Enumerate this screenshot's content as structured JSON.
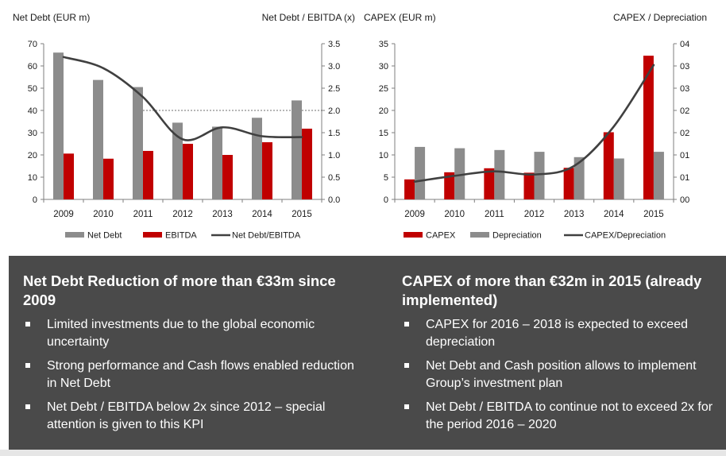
{
  "colors": {
    "bar_gray": "#8c8c8c",
    "bar_red": "#c00000",
    "line": "#404040",
    "panel_bg": "#4a4a4a",
    "panel_text": "#ffffff"
  },
  "chart_data": [
    {
      "type": "bar",
      "title_left": "Net Debt (EUR m)",
      "title_right": "Net Debt / EBITDA (x)",
      "categories": [
        "2009",
        "2010",
        "2011",
        "2012",
        "2013",
        "2014",
        "2015"
      ],
      "series": [
        {
          "name": "Net Debt",
          "kind": "bar",
          "axis": "left",
          "color": "#8c8c8c",
          "values": [
            66,
            53.7,
            50.5,
            34.5,
            32.7,
            36.7,
            44.5
          ]
        },
        {
          "name": "EBITDA",
          "kind": "bar",
          "axis": "left",
          "color": "#c00000",
          "values": [
            20.6,
            18.3,
            21.8,
            25,
            20,
            25.7,
            31.8
          ]
        },
        {
          "name": "Net Debt/EBITDA",
          "kind": "line",
          "axis": "right",
          "color": "#404040",
          "values": [
            3.2,
            2.95,
            2.3,
            1.35,
            1.62,
            1.42,
            1.4
          ]
        }
      ],
      "y_left": {
        "min": 0,
        "max": 70,
        "step": 10,
        "ticks": [
          "0",
          "10",
          "20",
          "30",
          "40",
          "50",
          "60",
          "70"
        ]
      },
      "y_right": {
        "min": 0,
        "max": 3.5,
        "step": 0.5,
        "ticks": [
          "0.0",
          "0.5",
          "1.0",
          "1.5",
          "2.0",
          "2.5",
          "3.0",
          "3.5"
        ]
      },
      "reference_line": {
        "axis": "right",
        "value": 2.0,
        "style": "dashed"
      },
      "legend": [
        "Net Debt",
        "EBITDA",
        "Net Debt/EBITDA"
      ],
      "legend_position": "bottom"
    },
    {
      "type": "bar",
      "title_left": "CAPEX (EUR m)",
      "title_right": "CAPEX / Depreciation",
      "categories": [
        "2009",
        "2010",
        "2011",
        "2012",
        "2013",
        "2014",
        "2015"
      ],
      "series": [
        {
          "name": "CAPEX",
          "kind": "bar",
          "axis": "left",
          "color": "#c00000",
          "values": [
            4.5,
            6.1,
            7,
            6,
            7.1,
            15.1,
            32.3
          ]
        },
        {
          "name": "Depreciation",
          "kind": "bar",
          "axis": "left",
          "color": "#8c8c8c",
          "values": [
            11.8,
            11.5,
            11.1,
            10.7,
            9.5,
            9.2,
            10.7
          ]
        },
        {
          "name": "CAPEX/Depreciation",
          "kind": "line",
          "axis": "right",
          "color": "#404040",
          "values": [
            0.4,
            0.53,
            0.63,
            0.56,
            0.75,
            1.64,
            3.02
          ]
        }
      ],
      "y_left": {
        "min": 0,
        "max": 35,
        "step": 5,
        "ticks": [
          "0",
          "5",
          "10",
          "15",
          "20",
          "25",
          "30",
          "35"
        ]
      },
      "y_right": {
        "min": 0,
        "max": 3.5,
        "step": 0.5,
        "ticks": [
          "00",
          "01",
          "01",
          "02",
          "02",
          "03",
          "03",
          "04"
        ]
      },
      "legend": [
        "CAPEX",
        "Depreciation",
        "CAPEX/Depreciation"
      ],
      "legend_position": "bottom"
    }
  ],
  "panel": {
    "left": {
      "heading": "Net Debt Reduction of more than €33m since 2009",
      "bullets": [
        "Limited investments due to the global economic uncertainty",
        "Strong performance and Cash flows enabled reduction in Net Debt",
        "Net Debt / EBITDA below 2x since 2012 – special attention is given to this KPI"
      ]
    },
    "right": {
      "heading": "CAPEX of more than €32m in 2015 (already implemented)",
      "bullets": [
        "CAPEX for 2016 – 2018 is expected to exceed depreciation",
        "Net Debt and Cash position allows to implement Group’s investment plan",
        "Net Debt / EBITDA to continue not to exceed 2x for the period 2016 – 2020"
      ]
    }
  }
}
